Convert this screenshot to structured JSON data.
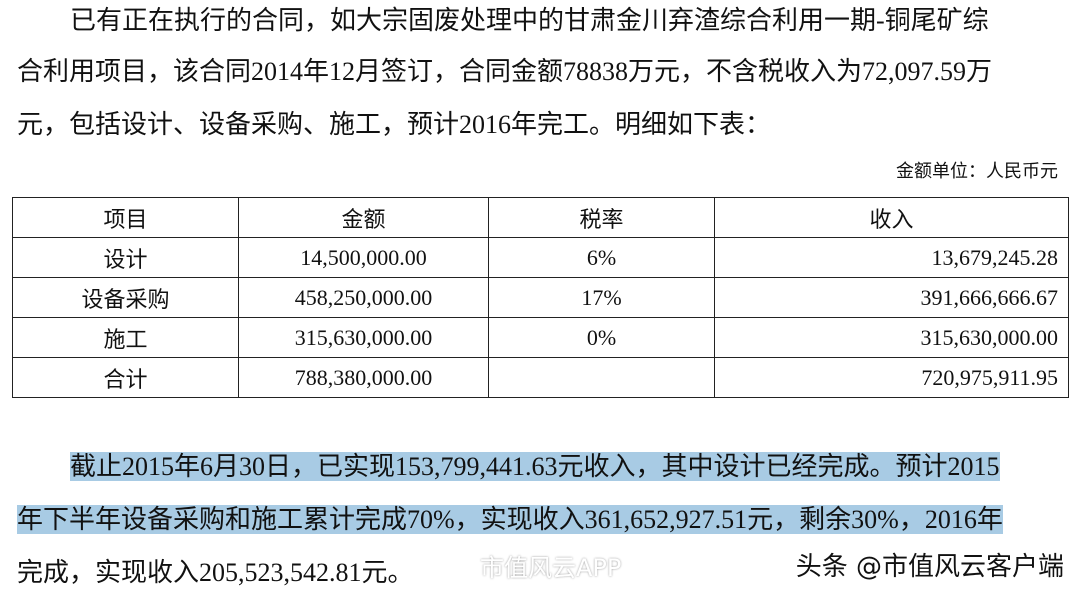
{
  "paragraph1": {
    "lines": [
      "已有正在执行的合同，如大宗固废处理中的甘肃金川弃渣综合利用一期-铜尾矿综",
      "合利用项目，该合同2014年12月签订，合同金额78838万元，不含税收入为72,097.59万",
      "元，包括设计、设备采购、施工，预计2016年完工。明细如下表："
    ]
  },
  "unit_note": "金额单位：人民币元",
  "table": {
    "headers": [
      "项目",
      "金额",
      "税率",
      "收入"
    ],
    "rows": [
      [
        "设计",
        "14,500,000.00",
        "6%",
        "13,679,245.28"
      ],
      [
        "设备采购",
        "458,250,000.00",
        "17%",
        "391,666,666.67"
      ],
      [
        "施工",
        "315,630,000.00",
        "0%",
        "315,630,000.00"
      ],
      [
        "合计",
        "788,380,000.00",
        "",
        "720,975,911.95"
      ]
    ]
  },
  "paragraph2": {
    "lines": [
      "截止2015年6月30日，已实现153,799,441.63元收入，其中设计已经完成。预计2015",
      "年下半年设备采购和施工累计完成70%，实现收入361,652,927.51元，剩余30%，2016年",
      "完成，实现收入205,523,542.81元。"
    ]
  },
  "highlight_color": "#a8cbe4",
  "watermarks": {
    "weibo": "市值风云APP",
    "toutiao": "头条 @市值风云客户端"
  }
}
